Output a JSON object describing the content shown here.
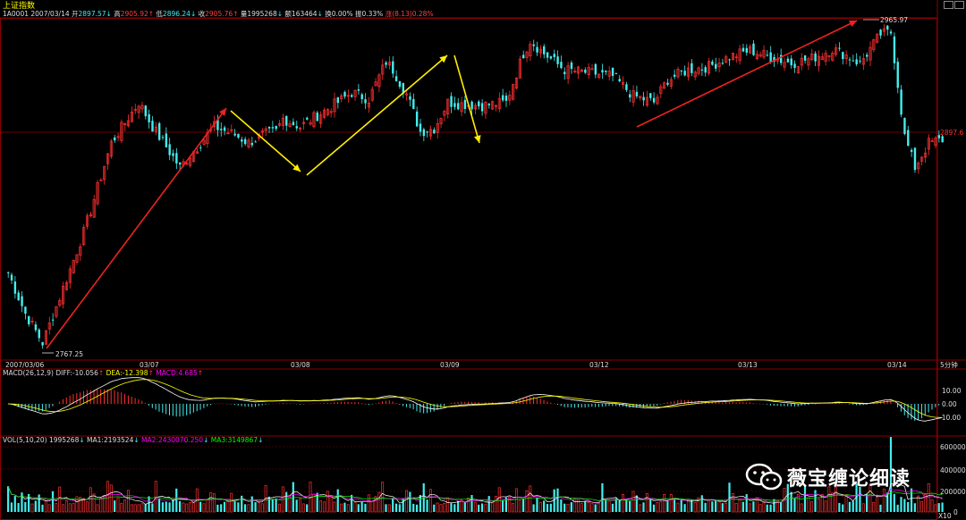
{
  "window": {
    "title": "上证指数"
  },
  "info": {
    "code": "1A0001",
    "date": "2007/03/14",
    "open_label": "开",
    "open": "2897.57",
    "high_label": "高",
    "high": "2905.92",
    "low_label": "低",
    "low": "2896.24",
    "close_label": "收",
    "close": "2905.76",
    "volume_label": "量",
    "volume": "1995268",
    "amount_label": "额",
    "amount": "163464",
    "turnover_label": "换",
    "turnover": "0.00%",
    "amplitude_label": "振",
    "amplitude": "0.33%",
    "change_label": "涨",
    "change": "(8.13)0.28%"
  },
  "main_chart": {
    "high_marker": "2965.97",
    "low_marker": "2767.25",
    "right_value": "2897.6",
    "timeframe": "5分钟",
    "x_labels": [
      "2007/03/06",
      "03/07",
      "03/08",
      "03/09",
      "03/12",
      "03/13",
      "03/14"
    ]
  },
  "macd": {
    "name": "MACD(26,12,9)",
    "diff_label": "DIFF:",
    "diff": "-10.056",
    "dea_label": "DEA:",
    "dea": "-12.398",
    "macd_label": "MACD:",
    "macd": "4.685",
    "y_ticks": [
      "10.00",
      "0.00",
      "-10.00"
    ]
  },
  "vol": {
    "name": "VOL(5,10,20)",
    "value": "1995268",
    "ma1_label": "MA1:",
    "ma1": "2193524",
    "ma2_label": "MA2:",
    "ma2": "2430070.250",
    "ma3_label": "MA3:",
    "ma3": "3149867",
    "y_ticks": [
      "600000",
      "400000",
      "200000",
      "0"
    ],
    "unit": "X10"
  },
  "watermark": {
    "text": "薇宝缠论细读"
  },
  "colors": {
    "up": "#ff3030",
    "down": "#44eeee",
    "trend_red": "#ee2222",
    "trend_yellow": "#ffee00",
    "grid": "#8b0000"
  },
  "chart_data": {
    "type": "candlestick",
    "title": "上证指数",
    "interval": "5分钟",
    "dates": [
      "2007/03/06",
      "03/07",
      "03/08",
      "03/09",
      "03/12",
      "03/13",
      "03/14"
    ],
    "price_marks": {
      "high": 2965.97,
      "low": 2767.25,
      "reference": 2897.6
    },
    "price_path": [
      [
        0,
        2815
      ],
      [
        5,
        2790
      ],
      [
        10,
        2772
      ],
      [
        15,
        2800
      ],
      [
        22,
        2840
      ],
      [
        30,
        2895
      ],
      [
        38,
        2920
      ],
      [
        42,
        2905
      ],
      [
        50,
        2880
      ],
      [
        56,
        2895
      ],
      [
        60,
        2905
      ],
      [
        66,
        2900
      ],
      [
        70,
        2895
      ],
      [
        74,
        2900
      ],
      [
        78,
        2902
      ],
      [
        80,
        2910
      ],
      [
        85,
        2905
      ],
      [
        90,
        2912
      ],
      [
        96,
        2920
      ],
      [
        100,
        2926
      ],
      [
        105,
        2922
      ],
      [
        110,
        2945
      ],
      [
        112,
        2940
      ],
      [
        116,
        2925
      ],
      [
        120,
        2902
      ],
      [
        124,
        2904
      ],
      [
        128,
        2920
      ],
      [
        132,
        2919
      ],
      [
        138,
        2918
      ],
      [
        145,
        2920
      ],
      [
        150,
        2950
      ],
      [
        152,
        2958
      ],
      [
        156,
        2950
      ],
      [
        162,
        2940
      ],
      [
        170,
        2938
      ],
      [
        176,
        2936
      ],
      [
        182,
        2924
      ],
      [
        188,
        2920
      ],
      [
        192,
        2934
      ],
      [
        198,
        2940
      ],
      [
        204,
        2942
      ],
      [
        210,
        2948
      ],
      [
        216,
        2952
      ],
      [
        222,
        2948
      ],
      [
        228,
        2944
      ],
      [
        234,
        2947
      ],
      [
        240,
        2953
      ],
      [
        244,
        2949
      ],
      [
        248,
        2944
      ],
      [
        254,
        2962
      ],
      [
        257,
        2963
      ],
      [
        261,
        2899
      ],
      [
        264,
        2880
      ],
      [
        268,
        2895
      ],
      [
        272,
        2897
      ]
    ],
    "macd": {
      "diff": -10.056,
      "dea": -12.398,
      "macd": 4.685,
      "ylim": [
        -15,
        15
      ]
    },
    "volume": {
      "value": 1995268,
      "ma1": 2193524,
      "ma2": 2430070.25,
      "ma3": 3149867,
      "ylim": [
        0,
        650000
      ]
    }
  }
}
